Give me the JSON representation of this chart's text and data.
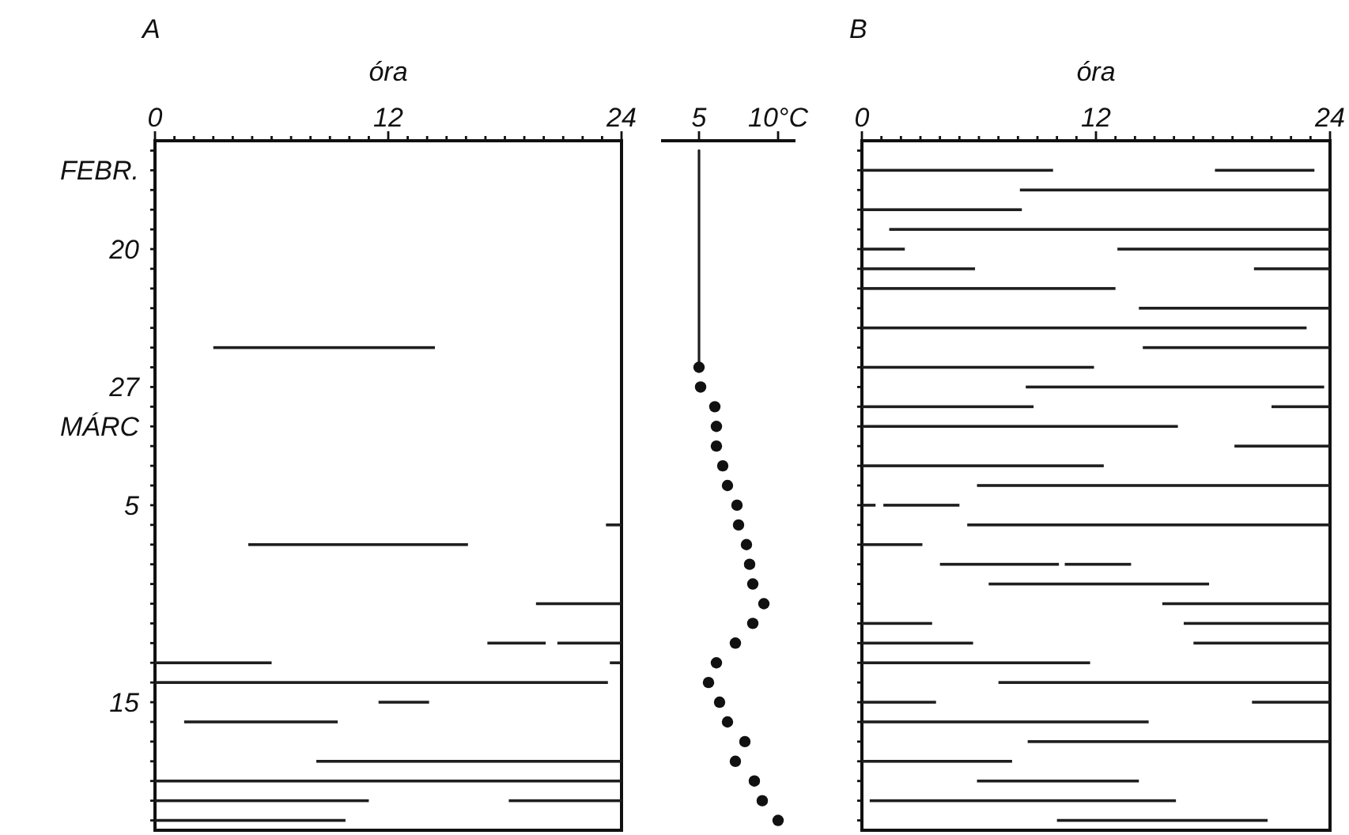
{
  "chart_data": [
    {
      "type": "bar",
      "orientation": "horizontal",
      "title": "A",
      "xlabel": "óra",
      "xlim": [
        0,
        24
      ],
      "xticks": [
        0,
        {
          "value": 1,
          "label": null
        },
        {
          "value": 2,
          "label": null
        },
        {
          "value": 3,
          "label": null
        },
        {
          "value": 4,
          "label": null
        },
        {
          "value": 5,
          "label": null
        },
        {
          "value": 6,
          "label": null
        },
        {
          "value": 7,
          "label": null
        },
        {
          "value": 8,
          "label": null
        },
        {
          "value": 9,
          "label": null
        },
        {
          "value": 10,
          "label": null
        },
        {
          "value": 11,
          "label": null
        },
        12,
        {
          "value": 13,
          "label": null
        },
        {
          "value": 14,
          "label": null
        },
        {
          "value": 15,
          "label": null
        },
        {
          "value": 16,
          "label": null
        },
        {
          "value": 17,
          "label": null
        },
        {
          "value": 18,
          "label": null
        },
        {
          "value": 19,
          "label": null
        },
        {
          "value": 20,
          "label": null
        },
        {
          "value": 21,
          "label": null
        },
        {
          "value": 22,
          "label": null
        },
        {
          "value": 23,
          "label": null
        },
        24
      ],
      "categories": [
        null,
        "FEBR.",
        null,
        null,
        null,
        "20",
        null,
        null,
        null,
        null,
        null,
        null,
        "27",
        null,
        "MÁRC",
        null,
        null,
        null,
        "5",
        null,
        null,
        null,
        null,
        null,
        null,
        null,
        null,
        null,
        "15",
        null,
        null,
        null,
        null,
        null,
        null
      ],
      "series": [
        {
          "color": "#1e1e1e",
          "base": [
            null,
            null,
            null,
            null,
            null,
            null,
            null,
            null,
            null,
            null,
            3.0,
            null,
            null,
            null,
            null,
            null,
            null,
            null,
            null,
            23.2,
            4.8,
            null,
            null,
            19.6,
            null,
            17.1,
            0,
            0,
            11.5,
            1.5,
            null,
            8.3,
            0,
            0,
            0
          ],
          "values": [
            null,
            null,
            null,
            null,
            null,
            null,
            null,
            null,
            null,
            null,
            11.4,
            null,
            null,
            null,
            null,
            null,
            null,
            null,
            null,
            0.8,
            11.3,
            null,
            null,
            4.4,
            null,
            3.0,
            6.0,
            23.3,
            2.6,
            7.9,
            null,
            15.7,
            24,
            11.0,
            9.8
          ]
        },
        {
          "color": "#1e1e1e",
          "base": [
            null,
            null,
            null,
            null,
            null,
            null,
            null,
            null,
            null,
            null,
            null,
            null,
            null,
            null,
            null,
            null,
            null,
            null,
            null,
            null,
            null,
            null,
            null,
            null,
            null,
            20.7,
            23.4,
            null,
            null,
            null,
            null,
            null,
            null,
            18.2,
            null
          ],
          "values": [
            null,
            null,
            null,
            null,
            null,
            null,
            null,
            null,
            null,
            null,
            null,
            null,
            null,
            null,
            null,
            null,
            null,
            null,
            null,
            null,
            null,
            null,
            null,
            null,
            null,
            3.3,
            0.6,
            null,
            null,
            null,
            null,
            null,
            null,
            5.8,
            null
          ]
        }
      ]
    },
    {
      "type": "scatter",
      "orientation": "horizontal",
      "xlim": [
        2.6,
        11.1
      ],
      "xticks": [
        5,
        {
          "value": 10,
          "label": "10°C"
        }
      ],
      "marker": "circle",
      "categories": [
        null,
        null,
        null,
        null,
        null,
        null,
        null,
        null,
        null,
        null,
        null,
        null,
        null,
        null,
        null,
        null,
        null,
        null,
        null,
        null,
        null,
        null,
        null,
        null,
        null,
        null,
        null,
        null,
        null,
        null,
        null,
        null,
        null,
        null,
        null
      ],
      "series": [
        {
          "type": "line",
          "marker": "none",
          "color": "#1e1e1e",
          "values": [
            5,
            5,
            5,
            5,
            5,
            5,
            5,
            5,
            5,
            5,
            5,
            5,
            null,
            null,
            null,
            null,
            null,
            null,
            null,
            null,
            null,
            null,
            null,
            null,
            null,
            null,
            null,
            null,
            null,
            null,
            null,
            null,
            null,
            null,
            null
          ]
        },
        {
          "type": "scatter",
          "color": "#111111",
          "values": [
            null,
            null,
            null,
            null,
            null,
            null,
            null,
            null,
            null,
            null,
            null,
            5.0,
            5.1,
            6.0,
            6.1,
            6.1,
            6.5,
            6.8,
            7.4,
            7.5,
            8.0,
            8.2,
            8.4,
            9.1,
            8.4,
            7.3,
            6.1,
            5.6,
            6.3,
            6.8,
            7.9,
            7.3,
            8.5,
            9.0,
            10.0
          ]
        }
      ]
    },
    {
      "type": "bar",
      "orientation": "horizontal",
      "title": "B",
      "xlabel": "óra",
      "xlim": [
        0,
        24
      ],
      "xticks": [
        0,
        {
          "value": 1,
          "label": null
        },
        {
          "value": 2,
          "label": null
        },
        {
          "value": 3,
          "label": null
        },
        {
          "value": 4,
          "label": null
        },
        {
          "value": 5,
          "label": null
        },
        {
          "value": 6,
          "label": null
        },
        {
          "value": 7,
          "label": null
        },
        {
          "value": 8,
          "label": null
        },
        {
          "value": 9,
          "label": null
        },
        {
          "value": 10,
          "label": null
        },
        {
          "value": 11,
          "label": null
        },
        12,
        {
          "value": 13,
          "label": null
        },
        {
          "value": 14,
          "label": null
        },
        {
          "value": 15,
          "label": null
        },
        {
          "value": 16,
          "label": null
        },
        {
          "value": 17,
          "label": null
        },
        {
          "value": 18,
          "label": null
        },
        {
          "value": 19,
          "label": null
        },
        {
          "value": 20,
          "label": null
        },
        {
          "value": 21,
          "label": null
        },
        {
          "value": 22,
          "label": null
        },
        {
          "value": 23,
          "label": null
        },
        24
      ],
      "categories": [
        null,
        null,
        null,
        null,
        null,
        null,
        null,
        null,
        null,
        null,
        null,
        null,
        null,
        null,
        null,
        null,
        null,
        null,
        null,
        null,
        null,
        null,
        null,
        null,
        null,
        null,
        null,
        null,
        null,
        null,
        null,
        null,
        null,
        null,
        null
      ],
      "series": [
        {
          "color": "#1e1e1e",
          "base": [
            null,
            0,
            8.1,
            0,
            1.4,
            0,
            0,
            0,
            14.2,
            0,
            14.4,
            0,
            8.4,
            0,
            0,
            19.1,
            0,
            5.9,
            0,
            5.4,
            0,
            4.0,
            6.5,
            15.4,
            0,
            0,
            0,
            7.0,
            0,
            0,
            8.5,
            0,
            5.9,
            0.4,
            10.0
          ],
          "values": [
            null,
            9.8,
            15.9,
            8.2,
            22.6,
            2.2,
            5.8,
            13.0,
            9.8,
            22.8,
            9.6,
            11.9,
            15.3,
            8.8,
            16.2,
            4.9,
            12.4,
            18.1,
            0.7,
            18.6,
            3.1,
            6.1,
            11.3,
            8.6,
            3.6,
            5.7,
            11.7,
            17.0,
            3.8,
            14.7,
            15.5,
            7.7,
            8.3,
            15.7,
            10.8
          ]
        },
        {
          "color": "#1e1e1e",
          "base": [
            null,
            18.1,
            null,
            null,
            null,
            13.1,
            20.1,
            null,
            null,
            null,
            null,
            null,
            null,
            21.0,
            null,
            null,
            null,
            null,
            1.1,
            null,
            null,
            10.4,
            null,
            null,
            16.5,
            17.0,
            null,
            null,
            20.0,
            null,
            null,
            null,
            null,
            null,
            null
          ],
          "values": [
            null,
            5.1,
            null,
            null,
            null,
            10.9,
            3.9,
            null,
            null,
            null,
            null,
            null,
            null,
            3.0,
            null,
            null,
            null,
            null,
            3.9,
            null,
            null,
            3.4,
            null,
            null,
            7.5,
            7.0,
            null,
            null,
            4.0,
            null,
            null,
            null,
            null,
            null,
            null
          ]
        }
      ]
    }
  ]
}
